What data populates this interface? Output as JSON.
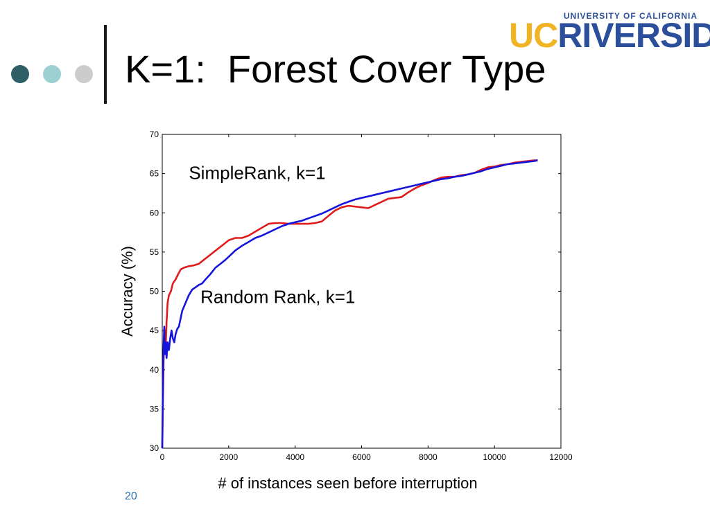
{
  "slide": {
    "title": "K=1:  Forest Cover Type",
    "page_number": "20",
    "decor_dot_colors": [
      "#2f5f66",
      "#9dd0d2",
      "#cccccc"
    ]
  },
  "logo": {
    "top_text": "UNIVERSITY OF CALIFORNIA",
    "uc_text": "UC",
    "main_text": "RIVERSIDE",
    "colors": {
      "uc": "#f0b323",
      "main": "#2b4f9a"
    }
  },
  "chart_data": {
    "type": "line",
    "xlabel": "# of instances seen before interruption",
    "ylabel": "Accuracy (%)",
    "xlim": [
      0,
      12000
    ],
    "ylim": [
      30,
      70
    ],
    "xticks": [
      0,
      2000,
      4000,
      6000,
      8000,
      10000,
      12000
    ],
    "yticks": [
      30,
      35,
      40,
      45,
      50,
      55,
      60,
      65,
      70
    ],
    "grid": false,
    "annotations": [
      {
        "text": "SimpleRank, k=1",
        "x": 800,
        "y": 64.3
      },
      {
        "text": "Random Rank, k=1",
        "x": 1150,
        "y": 48.5
      }
    ],
    "series": [
      {
        "color": "#e01b1b",
        "points": [
          [
            0,
            30
          ],
          [
            20,
            36
          ],
          [
            40,
            41
          ],
          [
            60,
            44
          ],
          [
            80,
            45
          ],
          [
            100,
            42.5
          ],
          [
            130,
            46
          ],
          [
            160,
            48.5
          ],
          [
            200,
            49.5
          ],
          [
            260,
            50
          ],
          [
            320,
            51
          ],
          [
            400,
            51.5
          ],
          [
            480,
            52.2
          ],
          [
            560,
            52.8
          ],
          [
            650,
            53
          ],
          [
            800,
            53.2
          ],
          [
            950,
            53.3
          ],
          [
            1100,
            53.5
          ],
          [
            1250,
            54
          ],
          [
            1400,
            54.5
          ],
          [
            1550,
            55
          ],
          [
            1700,
            55.5
          ],
          [
            1850,
            56
          ],
          [
            2000,
            56.5
          ],
          [
            2200,
            56.8
          ],
          [
            2400,
            56.8
          ],
          [
            2600,
            57.1
          ],
          [
            2800,
            57.6
          ],
          [
            3000,
            58.1
          ],
          [
            3200,
            58.6
          ],
          [
            3400,
            58.7
          ],
          [
            3600,
            58.7
          ],
          [
            3800,
            58.6
          ],
          [
            4000,
            58.6
          ],
          [
            4200,
            58.6
          ],
          [
            4400,
            58.6
          ],
          [
            4600,
            58.7
          ],
          [
            4800,
            58.9
          ],
          [
            5000,
            59.6
          ],
          [
            5200,
            60.3
          ],
          [
            5400,
            60.7
          ],
          [
            5600,
            60.9
          ],
          [
            5800,
            60.8
          ],
          [
            6000,
            60.7
          ],
          [
            6200,
            60.6
          ],
          [
            6400,
            61
          ],
          [
            6600,
            61.4
          ],
          [
            6800,
            61.8
          ],
          [
            7000,
            61.9
          ],
          [
            7200,
            62
          ],
          [
            7400,
            62.6
          ],
          [
            7600,
            63.1
          ],
          [
            7800,
            63.5
          ],
          [
            8000,
            63.8
          ],
          [
            8200,
            64.2
          ],
          [
            8400,
            64.5
          ],
          [
            8600,
            64.6
          ],
          [
            8800,
            64.6
          ],
          [
            9000,
            64.8
          ],
          [
            9200,
            64.9
          ],
          [
            9400,
            65.1
          ],
          [
            9600,
            65.5
          ],
          [
            9800,
            65.8
          ],
          [
            10000,
            65.9
          ],
          [
            10200,
            66.1
          ],
          [
            10400,
            66.2
          ],
          [
            10600,
            66.4
          ],
          [
            10800,
            66.5
          ],
          [
            11000,
            66.6
          ],
          [
            11200,
            66.7
          ],
          [
            11300,
            66.7
          ]
        ]
      },
      {
        "color": "#1414dc",
        "points": [
          [
            0,
            30
          ],
          [
            20,
            38
          ],
          [
            40,
            43
          ],
          [
            60,
            45.5
          ],
          [
            80,
            42
          ],
          [
            100,
            43.5
          ],
          [
            130,
            41.5
          ],
          [
            160,
            43.5
          ],
          [
            200,
            42.5
          ],
          [
            240,
            44
          ],
          [
            280,
            45
          ],
          [
            320,
            44
          ],
          [
            360,
            43.5
          ],
          [
            400,
            44.5
          ],
          [
            450,
            45.2
          ],
          [
            500,
            45.5
          ],
          [
            550,
            46.5
          ],
          [
            600,
            47.5
          ],
          [
            700,
            48.5
          ],
          [
            800,
            49.5
          ],
          [
            900,
            50.2
          ],
          [
            1000,
            50.5
          ],
          [
            1100,
            50.8
          ],
          [
            1200,
            51
          ],
          [
            1300,
            51.5
          ],
          [
            1450,
            52.2
          ],
          [
            1600,
            53
          ],
          [
            1750,
            53.5
          ],
          [
            1900,
            54
          ],
          [
            2050,
            54.6
          ],
          [
            2200,
            55.2
          ],
          [
            2400,
            55.8
          ],
          [
            2600,
            56.3
          ],
          [
            2800,
            56.8
          ],
          [
            3000,
            57.1
          ],
          [
            3200,
            57.5
          ],
          [
            3400,
            57.9
          ],
          [
            3600,
            58.3
          ],
          [
            3800,
            58.6
          ],
          [
            4000,
            58.8
          ],
          [
            4200,
            59
          ],
          [
            4400,
            59.3
          ],
          [
            4600,
            59.6
          ],
          [
            4800,
            59.9
          ],
          [
            5000,
            60.3
          ],
          [
            5200,
            60.7
          ],
          [
            5400,
            61.1
          ],
          [
            5600,
            61.4
          ],
          [
            5800,
            61.7
          ],
          [
            6000,
            61.9
          ],
          [
            6200,
            62.1
          ],
          [
            6400,
            62.3
          ],
          [
            6600,
            62.5
          ],
          [
            6800,
            62.7
          ],
          [
            7000,
            62.9
          ],
          [
            7200,
            63.1
          ],
          [
            7400,
            63.3
          ],
          [
            7600,
            63.5
          ],
          [
            7800,
            63.7
          ],
          [
            8000,
            63.9
          ],
          [
            8200,
            64.1
          ],
          [
            8400,
            64.3
          ],
          [
            8600,
            64.4
          ],
          [
            8800,
            64.6
          ],
          [
            9000,
            64.7
          ],
          [
            9200,
            64.9
          ],
          [
            9400,
            65.1
          ],
          [
            9600,
            65.3
          ],
          [
            9800,
            65.6
          ],
          [
            10000,
            65.8
          ],
          [
            10200,
            66
          ],
          [
            10400,
            66.2
          ],
          [
            10600,
            66.3
          ],
          [
            10800,
            66.4
          ],
          [
            11000,
            66.5
          ],
          [
            11200,
            66.6
          ],
          [
            11300,
            66.7
          ]
        ]
      }
    ]
  }
}
